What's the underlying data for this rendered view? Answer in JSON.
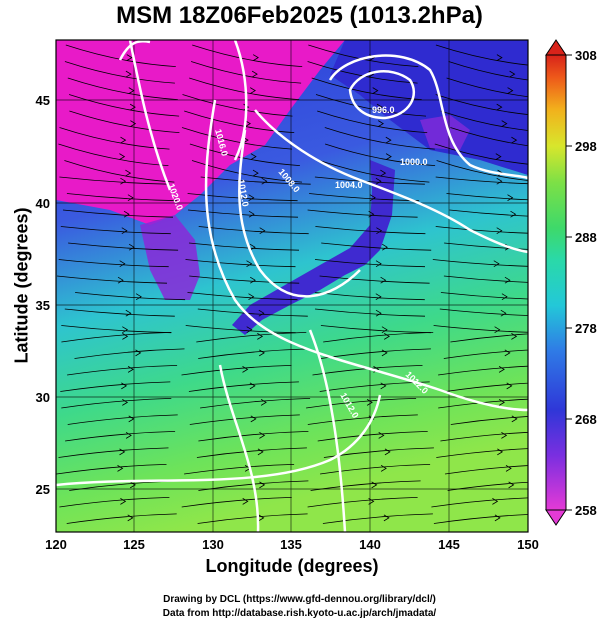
{
  "title": "MSM 18Z06Feb2025 (1013.2hPa)",
  "xaxis": {
    "label": "Longitude (degrees)",
    "range": [
      120,
      150
    ],
    "ticks": [
      "120",
      "125",
      "130",
      "135",
      "140",
      "145",
      "150"
    ]
  },
  "yaxis": {
    "label": "Latitude  (degrees)",
    "range": [
      22.4,
      47.6
    ],
    "ticks": [
      "25",
      "30",
      "35",
      "40",
      "45"
    ]
  },
  "colorbar": {
    "min": 258,
    "max": 308,
    "ticks": [
      "258",
      "268",
      "278",
      "288",
      "298",
      "308"
    ]
  },
  "isobars": [
    "996.0",
    "1000.0",
    "1004.0",
    "1008.0",
    "1012.0",
    "1016.0",
    "1020.0",
    "1012.0",
    "1012.0"
  ],
  "credits": [
    "Drawing by DCL (https://www.gfd-dennou.org/library/dcl/)",
    "Data from http://database.rish.kyoto-u.ac.jp/arch/jmadata/"
  ],
  "colors": {
    "cold": "#e60fc8",
    "cool": "#3c34d6",
    "mild": "#1fb3d8",
    "warm": "#5fe06a"
  }
}
